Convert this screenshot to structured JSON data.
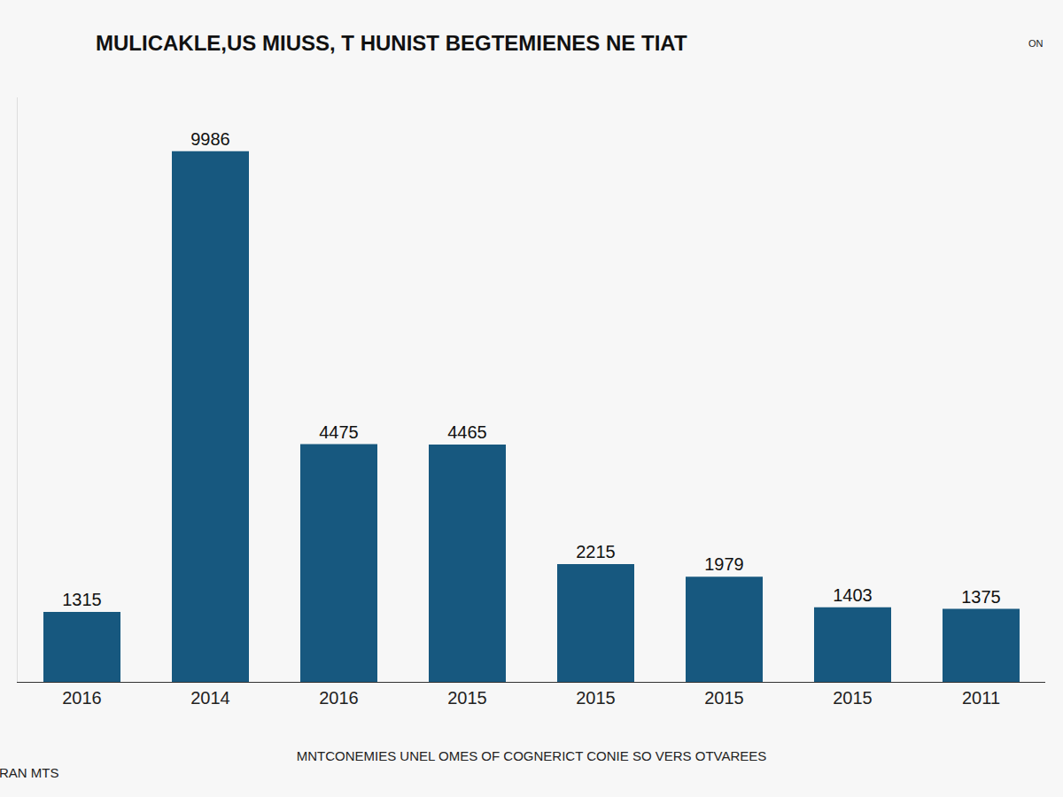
{
  "chart_data": {
    "type": "bar",
    "title": "MULICAKLE,US MIUSS, T HUNIST BEGTEMIENES NE TIAT",
    "categories": [
      "2016",
      "2014",
      "2016",
      "2015",
      "2015",
      "2015",
      "2015",
      "2011"
    ],
    "values": [
      1315,
      9986,
      4475,
      4465,
      2215,
      1979,
      1403,
      1375
    ],
    "color": "#17587f",
    "data_labels": true,
    "ylim": [
      0,
      11000
    ],
    "tick_labels": "x",
    "grid": false,
    "xlabel": "MNTCONEMIES UNEL OMES OF COGNERICT CONIE SO VERS OTVAREES",
    "annotations": [
      "ON",
      "RAN MTS"
    ]
  }
}
